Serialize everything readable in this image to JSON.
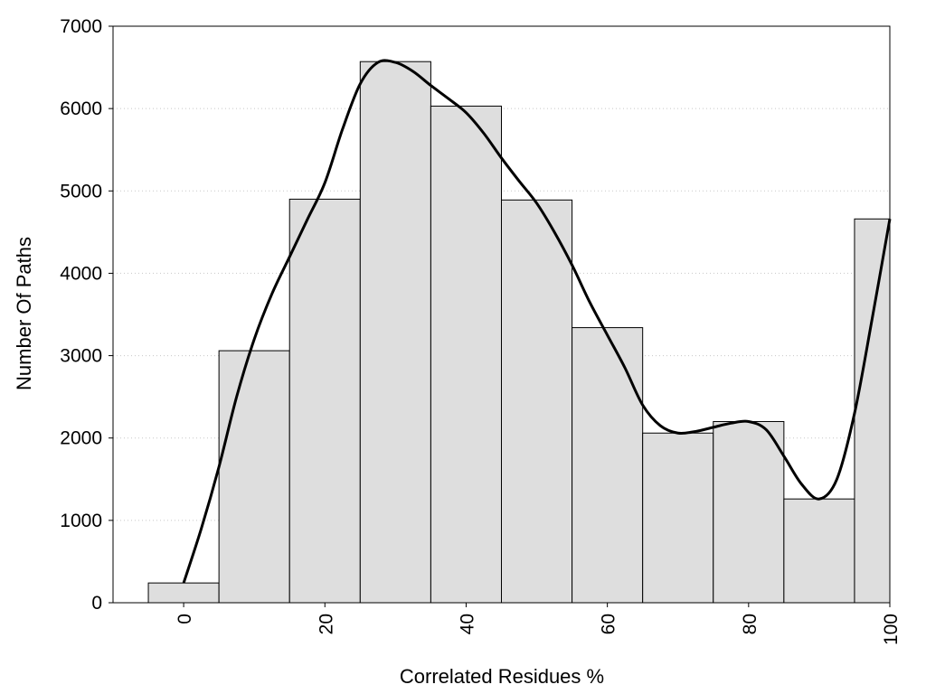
{
  "chart_data": {
    "type": "bar",
    "title": "",
    "xlabel": "Correlated Residues %",
    "ylabel": "Number Of Paths",
    "xlim": [
      -10,
      100
    ],
    "ylim": [
      0,
      7000
    ],
    "x_ticks": [
      0,
      20,
      40,
      60,
      80,
      100
    ],
    "y_ticks": [
      0,
      1000,
      2000,
      3000,
      4000,
      5000,
      6000,
      7000
    ],
    "grid": "horizontal dotted",
    "bar_width": 10,
    "bar_fill": "#dedede",
    "bar_stroke": "#000000",
    "line_color": "#000000",
    "bars": {
      "x": [
        0,
        10,
        20,
        30,
        40,
        50,
        60,
        70,
        80,
        90,
        100
      ],
      "values": [
        240,
        3060,
        4900,
        6570,
        6030,
        4890,
        3340,
        2060,
        2200,
        1260,
        4660
      ]
    },
    "curve": {
      "x": [
        0,
        2.5,
        5,
        7.5,
        10,
        12.5,
        15,
        17.5,
        20,
        22.5,
        25,
        27.5,
        30,
        32.5,
        35,
        37.5,
        40,
        42.5,
        45,
        47.5,
        50,
        52.5,
        55,
        57.5,
        60,
        62.5,
        65,
        67.5,
        70,
        72.5,
        75,
        77.5,
        80,
        82.5,
        85,
        87.5,
        90,
        92.5,
        95,
        97.5,
        100
      ],
      "values": [
        240,
        900,
        1650,
        2500,
        3200,
        3750,
        4200,
        4650,
        5100,
        5750,
        6300,
        6560,
        6560,
        6450,
        6280,
        6120,
        5950,
        5700,
        5400,
        5120,
        4850,
        4500,
        4100,
        3650,
        3250,
        2850,
        2400,
        2150,
        2060,
        2080,
        2130,
        2180,
        2200,
        2100,
        1780,
        1440,
        1260,
        1500,
        2300,
        3450,
        4660
      ]
    }
  }
}
